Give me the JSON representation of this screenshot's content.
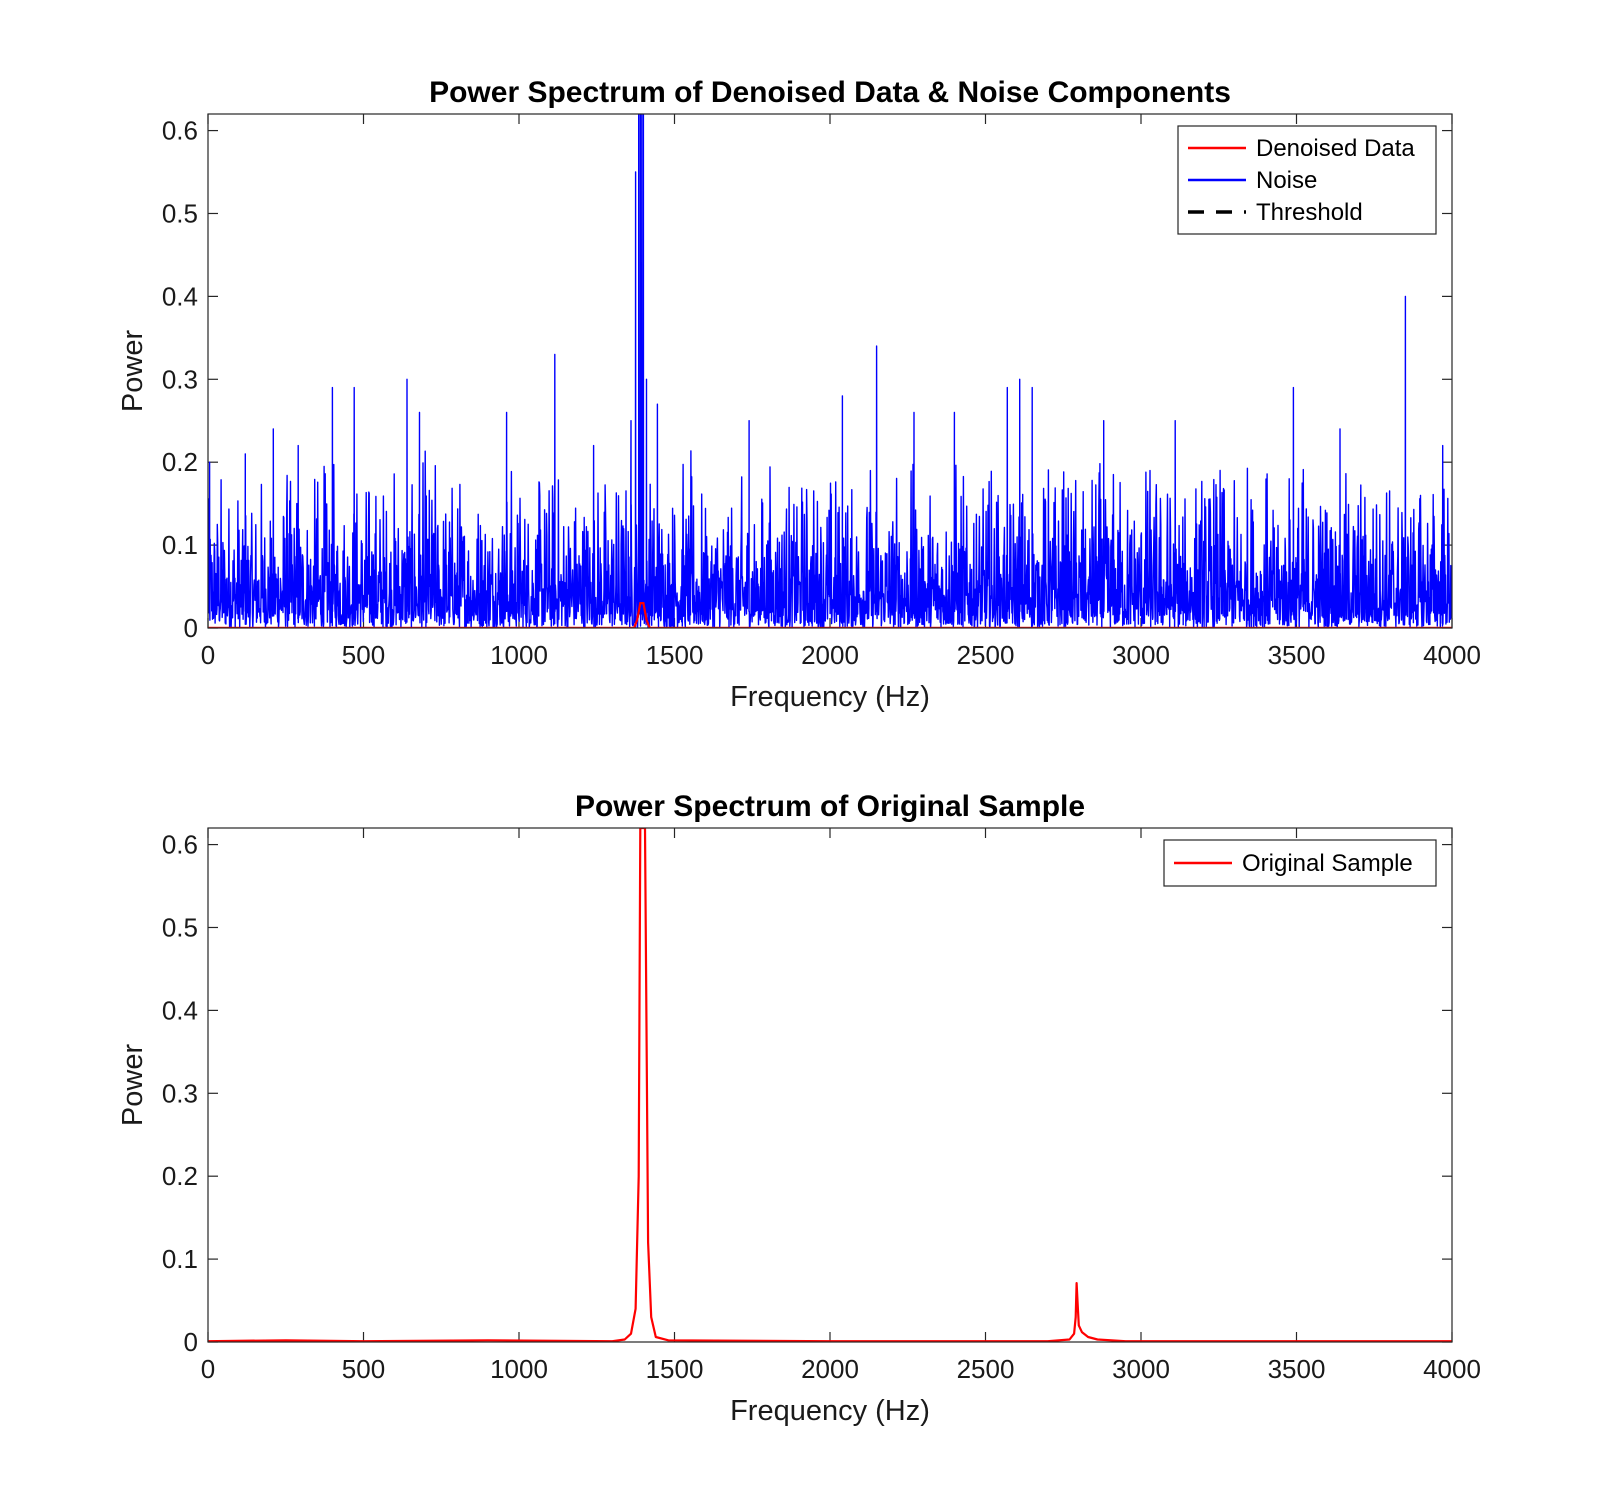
{
  "chart_data": [
    {
      "type": "line",
      "title": "Power Spectrum of Denoised Data & Noise Components",
      "xlabel": "Frequency (Hz)",
      "ylabel": "Power",
      "xlim": [
        0,
        4000
      ],
      "ylim": [
        0,
        0.62
      ],
      "xticks": [
        "0",
        "500",
        "1000",
        "1500",
        "2000",
        "2500",
        "3000",
        "3500",
        "4000"
      ],
      "yticks": [
        "0",
        "0.1",
        "0.2",
        "0.3",
        "0.4",
        "0.5",
        "0.6"
      ],
      "legend_position": "top-right",
      "series": [
        {
          "name": "Denoised Data",
          "color": "#ff0000",
          "style": "solid",
          "x": [
            0,
            1370,
            1380,
            1390,
            1400,
            1410,
            1420,
            4000
          ],
          "y": [
            0,
            0,
            0.01,
            0.03,
            0.03,
            0.01,
            0,
            0
          ]
        },
        {
          "name": "Noise",
          "color": "#0000ff",
          "style": "solid",
          "noise_floor_mean": 0.05,
          "x": [
            5,
            120,
            210,
            290,
            400,
            470,
            640,
            680,
            960,
            1115,
            1240,
            1360,
            1375,
            1385,
            1390,
            1395,
            1400,
            1410,
            1445,
            1740,
            2040,
            2150,
            2270,
            2400,
            2570,
            2610,
            2650,
            2880,
            3110,
            3490,
            3640,
            3850,
            3970
          ],
          "y": [
            0.2,
            0.21,
            0.24,
            0.22,
            0.29,
            0.29,
            0.3,
            0.26,
            0.26,
            0.33,
            0.22,
            0.25,
            0.55,
            0.62,
            0.62,
            0.62,
            0.62,
            0.3,
            0.27,
            0.25,
            0.28,
            0.34,
            0.26,
            0.26,
            0.29,
            0.3,
            0.29,
            0.25,
            0.25,
            0.29,
            0.24,
            0.4,
            0.22
          ]
        },
        {
          "name": "Threshold",
          "color": "#000000",
          "style": "dashed",
          "x": [],
          "y": []
        }
      ]
    },
    {
      "type": "line",
      "title": "Power Spectrum of Original Sample",
      "xlabel": "Frequency (Hz)",
      "ylabel": "Power",
      "xlim": [
        0,
        4000
      ],
      "ylim": [
        0,
        0.62
      ],
      "xticks": [
        "0",
        "500",
        "1000",
        "1500",
        "2000",
        "2500",
        "3000",
        "3500",
        "4000"
      ],
      "yticks": [
        "0",
        "0.1",
        "0.2",
        "0.3",
        "0.4",
        "0.5",
        "0.6"
      ],
      "legend_position": "top-right",
      "series": [
        {
          "name": "Original Sample",
          "color": "#ff0000",
          "style": "solid",
          "x": [
            0,
            250,
            500,
            900,
            1300,
            1340,
            1360,
            1375,
            1385,
            1390,
            1395,
            1400,
            1405,
            1415,
            1425,
            1440,
            1480,
            2000,
            2700,
            2770,
            2785,
            2790,
            2793,
            2797,
            2800,
            2810,
            2830,
            2860,
            2950,
            4000
          ],
          "y": [
            0.001,
            0.002,
            0.001,
            0.002,
            0.001,
            0.003,
            0.01,
            0.04,
            0.2,
            0.62,
            0.62,
            0.62,
            0.62,
            0.12,
            0.03,
            0.006,
            0.002,
            0.001,
            0.001,
            0.003,
            0.01,
            0.03,
            0.071,
            0.04,
            0.02,
            0.012,
            0.006,
            0.003,
            0.001,
            0.001
          ]
        }
      ]
    }
  ]
}
